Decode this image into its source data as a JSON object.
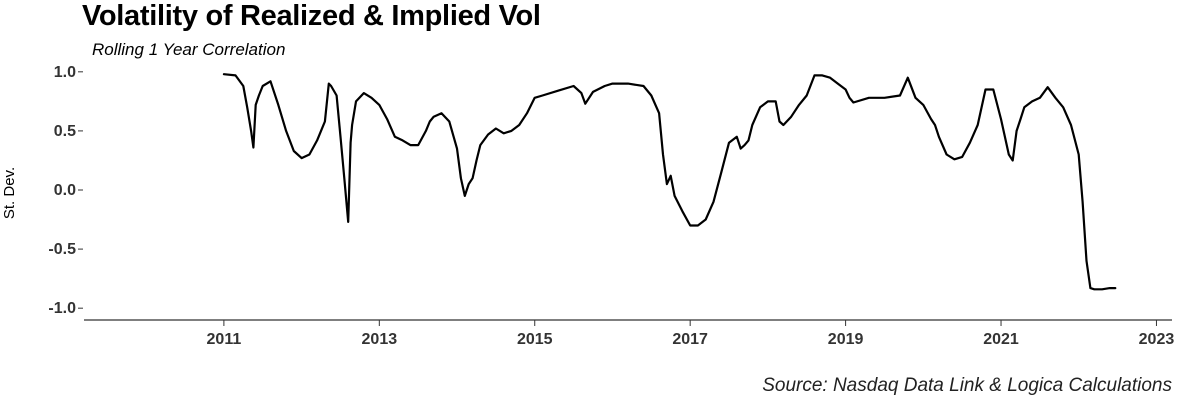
{
  "chart_data": {
    "type": "line",
    "title": "Volatility of Realized & Implied Vol",
    "subtitle": "Rolling 1 Year Correlation",
    "ylabel": "St. Dev.",
    "xlabel": "",
    "source": "Source: Nasdaq Data Link & Logica Calculations",
    "xlim": [
      2009.2,
      2023.2
    ],
    "ylim": [
      -1.1,
      1.1
    ],
    "x_ticks": [
      2011,
      2013,
      2015,
      2017,
      2019,
      2021,
      2023
    ],
    "x_tick_labels": [
      "2011",
      "2013",
      "2015",
      "2017",
      "2019",
      "2021",
      "2023"
    ],
    "y_ticks": [
      1.0,
      0.5,
      0.0,
      -0.5,
      -1.0
    ],
    "y_tick_labels": [
      "1.0",
      "0.5",
      "0.0",
      "-0.5",
      "-1.0"
    ],
    "grid": false,
    "line_color": "#000000",
    "series": [
      {
        "x": [
          2011.0,
          2011.15,
          2011.25,
          2011.3,
          2011.35,
          2011.38,
          2011.41,
          2011.45,
          2011.5,
          2011.6,
          2011.7,
          2011.8,
          2011.9,
          2012.0,
          2012.1,
          2012.2,
          2012.3,
          2012.35,
          2012.38,
          2012.45,
          2012.5,
          2012.55,
          2012.6,
          2012.63,
          2012.65,
          2012.7,
          2012.8,
          2012.9,
          2013.0,
          2013.1,
          2013.2,
          2013.3,
          2013.4,
          2013.5,
          2013.6,
          2013.65,
          2013.7,
          2013.8,
          2013.9,
          2014.0,
          2014.05,
          2014.1,
          2014.15,
          2014.2,
          2014.25,
          2014.3,
          2014.4,
          2014.5,
          2014.6,
          2014.7,
          2014.8,
          2014.9,
          2015.0,
          2015.1,
          2015.3,
          2015.5,
          2015.6,
          2015.65,
          2015.75,
          2015.9,
          2016.0,
          2016.2,
          2016.4,
          2016.5,
          2016.6,
          2016.65,
          2016.7,
          2016.75,
          2016.8,
          2016.9,
          2017.0,
          2017.1,
          2017.2,
          2017.3,
          2017.4,
          2017.5,
          2017.6,
          2017.65,
          2017.7,
          2017.75,
          2017.8,
          2017.9,
          2018.0,
          2018.1,
          2018.15,
          2018.2,
          2018.3,
          2018.4,
          2018.5,
          2018.6,
          2018.7,
          2018.8,
          2018.9,
          2019.0,
          2019.05,
          2019.1,
          2019.3,
          2019.5,
          2019.7,
          2019.8,
          2019.9,
          2020.0,
          2020.1,
          2020.15,
          2020.2,
          2020.3,
          2020.4,
          2020.5,
          2020.6,
          2020.7,
          2020.8,
          2020.85,
          2020.9,
          2021.0,
          2021.1,
          2021.15,
          2021.2,
          2021.25,
          2021.3,
          2021.4,
          2021.5,
          2021.6,
          2021.7,
          2021.8,
          2021.9,
          2022.0,
          2022.05,
          2022.1,
          2022.15,
          2022.2,
          2022.3,
          2022.4,
          2022.47
        ],
        "values": [
          0.98,
          0.97,
          0.88,
          0.7,
          0.5,
          0.36,
          0.72,
          0.8,
          0.88,
          0.92,
          0.72,
          0.5,
          0.33,
          0.27,
          0.3,
          0.42,
          0.58,
          0.9,
          0.88,
          0.8,
          0.45,
          0.1,
          -0.27,
          0.4,
          0.55,
          0.75,
          0.82,
          0.78,
          0.72,
          0.6,
          0.45,
          0.42,
          0.38,
          0.38,
          0.5,
          0.58,
          0.62,
          0.65,
          0.58,
          0.35,
          0.1,
          -0.05,
          0.05,
          0.1,
          0.25,
          0.38,
          0.47,
          0.52,
          0.48,
          0.5,
          0.55,
          0.65,
          0.78,
          0.8,
          0.84,
          0.88,
          0.82,
          0.73,
          0.83,
          0.88,
          0.9,
          0.9,
          0.88,
          0.8,
          0.65,
          0.3,
          0.05,
          0.12,
          -0.05,
          -0.18,
          -0.3,
          -0.3,
          -0.25,
          -0.1,
          0.15,
          0.4,
          0.45,
          0.35,
          0.38,
          0.42,
          0.55,
          0.7,
          0.75,
          0.75,
          0.58,
          0.55,
          0.62,
          0.72,
          0.8,
          0.97,
          0.97,
          0.95,
          0.9,
          0.85,
          0.78,
          0.74,
          0.78,
          0.78,
          0.8,
          0.95,
          0.78,
          0.72,
          0.6,
          0.55,
          0.45,
          0.3,
          0.26,
          0.28,
          0.4,
          0.55,
          0.85,
          0.85,
          0.85,
          0.6,
          0.3,
          0.25,
          0.5,
          0.6,
          0.7,
          0.75,
          0.78,
          0.87,
          0.78,
          0.7,
          0.55,
          0.3,
          -0.1,
          -0.6,
          -0.83,
          -0.84,
          -0.84,
          -0.83,
          -0.83
        ]
      }
    ]
  }
}
